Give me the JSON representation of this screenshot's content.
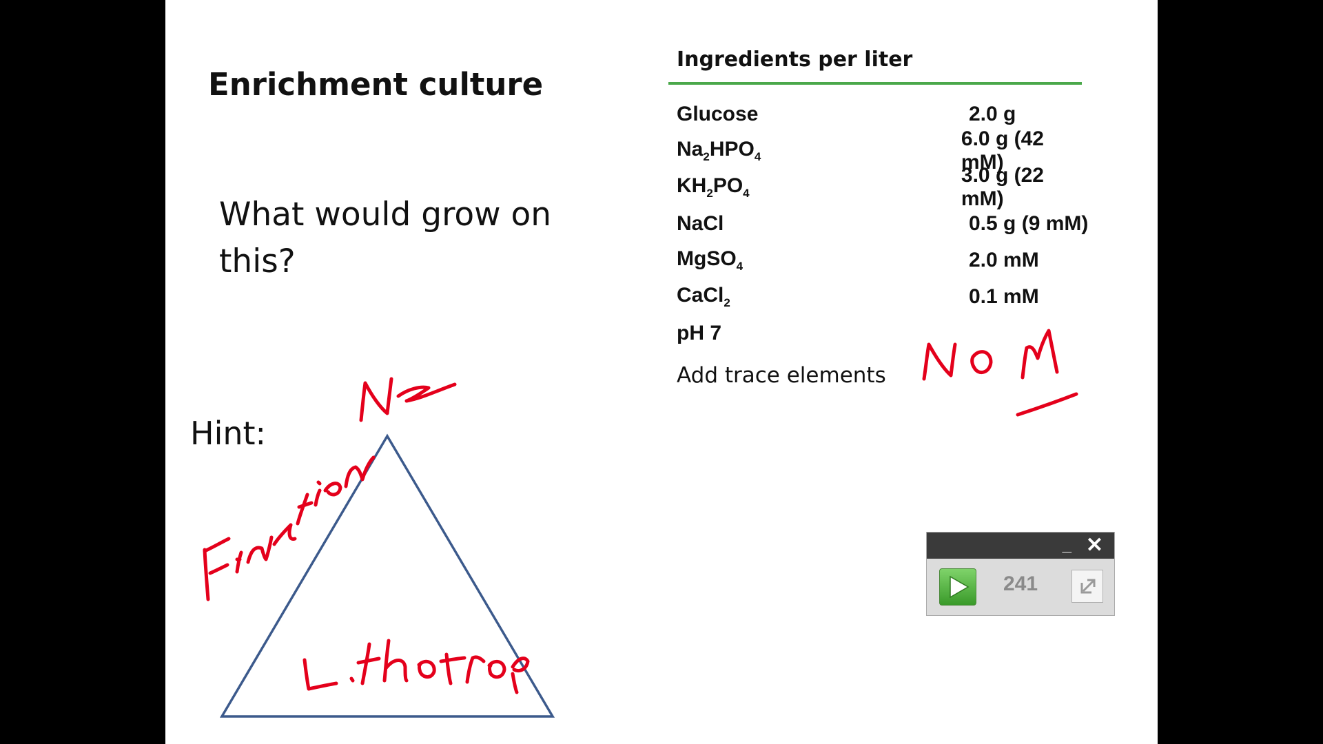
{
  "slide": {
    "title": "Enrichment culture",
    "question": "What would grow on this?",
    "hint": "Hint:"
  },
  "table": {
    "header": "Ingredients per liter",
    "rows": [
      {
        "ingredient_parts": [
          "Glucose"
        ],
        "amount": "2.0 g"
      },
      {
        "ingredient_parts": [
          "Na",
          "2",
          "HPO",
          "4"
        ],
        "amount": "6.0 g (42 mM)"
      },
      {
        "ingredient_parts": [
          "KH",
          "2",
          "PO",
          "4"
        ],
        "amount": "3.0 g (22 mM)"
      },
      {
        "ingredient_parts": [
          "NaCl"
        ],
        "amount": "0.5 g (9 mM)"
      },
      {
        "ingredient_parts": [
          "MgSO",
          "4"
        ],
        "amount": "2.0 mM"
      },
      {
        "ingredient_parts": [
          "CaCl",
          "2"
        ],
        "amount": "0.1 mM"
      },
      {
        "ingredient_parts": [
          "pH 7"
        ],
        "amount": ""
      }
    ],
    "trace": "Add trace elements"
  },
  "annotations": {
    "handwriting": [
      "N₂",
      "Fixation",
      "Lithotroph",
      "NO N"
    ],
    "ink_color": "#e4001b",
    "triangle_color": "#3c5a8c"
  },
  "widget": {
    "minimize_label": "_",
    "close_label": "✕",
    "counter": "241",
    "play_icon": "play-icon",
    "expand_icon": "expand-icon"
  }
}
